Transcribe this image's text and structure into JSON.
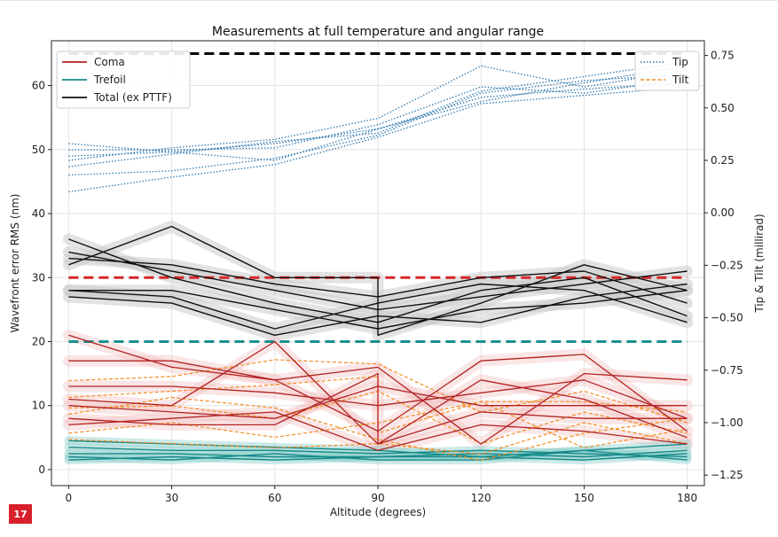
{
  "page_badge": "17",
  "chart_data": {
    "type": "line",
    "title": "Measurements at full temperature and angular range",
    "xlabel": "Altitude (degrees)",
    "ylabel_left": "Wavefront error RMS (nm)",
    "ylabel_right": "Tip & Tilt (millirad)",
    "x_ticks": [
      0,
      30,
      60,
      90,
      120,
      150,
      180
    ],
    "y_left_ticks": [
      0,
      10,
      20,
      30,
      40,
      50,
      60
    ],
    "y_right_ticks": [
      "0.75",
      "0.50",
      "0.25",
      "0.00",
      "−0.25",
      "−0.50",
      "−0.75",
      "−1.00",
      "−1.25"
    ],
    "xlim": [
      -5,
      185
    ],
    "ylim_left": [
      -2.5,
      67
    ],
    "ylim_right": [
      -1.3,
      0.82
    ],
    "grid": true,
    "colors": {
      "coma": "#b22222",
      "coma_band": "#f2b8b8",
      "trefoil": "#178a8a",
      "trefoil_band": "#8fd0cc",
      "total": "#111111",
      "total_band": "#cccccc",
      "tip": "#2f7ab0",
      "tilt": "#f28c1e",
      "req_coma": "#d62728",
      "req_trefoil": "#17908e",
      "req_total": "#000000"
    },
    "legend_left": [
      {
        "label": "Coma",
        "color": "#b22222",
        "style": "solid"
      },
      {
        "label": "Trefoil",
        "color": "#178a8a",
        "style": "solid"
      },
      {
        "label": "Total (ex PTTF)",
        "color": "#111111",
        "style": "solid"
      }
    ],
    "legend_right": [
      {
        "label": "Tip",
        "color": "#2f7ab0",
        "style": "dotted"
      },
      {
        "label": "Tilt",
        "color": "#f28c1e",
        "style": "dashed"
      }
    ],
    "reference_lines": [
      {
        "series": "total",
        "y": 65,
        "color": "#000000"
      },
      {
        "series": "coma",
        "y": 30,
        "color": "#d62728"
      },
      {
        "series": "trefoil",
        "y": 20,
        "color": "#17908e"
      }
    ],
    "total_series": [
      [
        {
          "x": 0,
          "y": 36
        },
        {
          "x": 30,
          "y": 30
        },
        {
          "x": 60,
          "y": 26
        },
        {
          "x": 90,
          "y": 23
        },
        {
          "x": 120,
          "y": 28
        },
        {
          "x": 150,
          "y": 30
        },
        {
          "x": 180,
          "y": 24
        }
      ],
      [
        {
          "x": 0,
          "y": 34
        },
        {
          "x": 30,
          "y": 31
        },
        {
          "x": 60,
          "y": 28
        },
        {
          "x": 90,
          "y": 25
        },
        {
          "x": 120,
          "y": 27
        },
        {
          "x": 150,
          "y": 29
        },
        {
          "x": 180,
          "y": 31
        }
      ],
      [
        {
          "x": 0,
          "y": 32
        },
        {
          "x": 30,
          "y": 38
        },
        {
          "x": 60,
          "y": 30
        },
        {
          "x": 90,
          "y": 30
        },
        {
          "x": 90,
          "y": 21
        },
        {
          "x": 120,
          "y": 26
        },
        {
          "x": 150,
          "y": 32
        },
        {
          "x": 180,
          "y": 28
        }
      ],
      [
        {
          "x": 0,
          "y": 28
        },
        {
          "x": 30,
          "y": 27
        },
        {
          "x": 60,
          "y": 22
        },
        {
          "x": 90,
          "y": 26
        },
        {
          "x": 120,
          "y": 29
        },
        {
          "x": 150,
          "y": 28
        },
        {
          "x": 180,
          "y": 23
        }
      ],
      [
        {
          "x": 0,
          "y": 27
        },
        {
          "x": 30,
          "y": 26
        },
        {
          "x": 60,
          "y": 21
        },
        {
          "x": 90,
          "y": 24
        },
        {
          "x": 120,
          "y": 23
        },
        {
          "x": 150,
          "y": 27
        },
        {
          "x": 180,
          "y": 29
        }
      ],
      [
        {
          "x": 0,
          "y": 33
        },
        {
          "x": 30,
          "y": 32
        },
        {
          "x": 60,
          "y": 29
        },
        {
          "x": 90,
          "y": 27
        },
        {
          "x": 120,
          "y": 30
        },
        {
          "x": 150,
          "y": 31
        },
        {
          "x": 180,
          "y": 26
        }
      ],
      [
        {
          "x": 0,
          "y": 28
        },
        {
          "x": 30,
          "y": 28
        },
        {
          "x": 60,
          "y": 25
        },
        {
          "x": 90,
          "y": 22
        },
        {
          "x": 120,
          "y": 25
        },
        {
          "x": 150,
          "y": 26
        },
        {
          "x": 180,
          "y": 28
        }
      ]
    ],
    "coma_series": [
      [
        {
          "x": 0,
          "y": 21
        },
        {
          "x": 30,
          "y": 16
        },
        {
          "x": 60,
          "y": 14
        },
        {
          "x": 90,
          "y": 6
        },
        {
          "x": 120,
          "y": 17
        },
        {
          "x": 150,
          "y": 18
        },
        {
          "x": 180,
          "y": 6
        }
      ],
      [
        {
          "x": 0,
          "y": 17
        },
        {
          "x": 30,
          "y": 17
        },
        {
          "x": 60,
          "y": 14
        },
        {
          "x": 90,
          "y": 16
        },
        {
          "x": 120,
          "y": 4
        },
        {
          "x": 150,
          "y": 15
        },
        {
          "x": 180,
          "y": 14
        }
      ],
      [
        {
          "x": 0,
          "y": 13
        },
        {
          "x": 30,
          "y": 13
        },
        {
          "x": 60,
          "y": 12
        },
        {
          "x": 90,
          "y": 10
        },
        {
          "x": 120,
          "y": 12
        },
        {
          "x": 150,
          "y": 14
        },
        {
          "x": 180,
          "y": 8
        }
      ],
      [
        {
          "x": 0,
          "y": 11
        },
        {
          "x": 30,
          "y": 10
        },
        {
          "x": 60,
          "y": 20
        },
        {
          "x": 90,
          "y": 4
        },
        {
          "x": 120,
          "y": 14
        },
        {
          "x": 150,
          "y": 11
        },
        {
          "x": 180,
          "y": 5
        }
      ],
      [
        {
          "x": 0,
          "y": 10
        },
        {
          "x": 30,
          "y": 9
        },
        {
          "x": 60,
          "y": 8
        },
        {
          "x": 90,
          "y": 13
        },
        {
          "x": 120,
          "y": 10
        },
        {
          "x": 150,
          "y": 10
        },
        {
          "x": 180,
          "y": 10
        }
      ],
      [
        {
          "x": 0,
          "y": 8
        },
        {
          "x": 30,
          "y": 7
        },
        {
          "x": 60,
          "y": 7
        },
        {
          "x": 90,
          "y": 15
        },
        {
          "x": 90,
          "y": 4
        },
        {
          "x": 120,
          "y": 9
        },
        {
          "x": 150,
          "y": 8
        },
        {
          "x": 180,
          "y": 8
        }
      ],
      [
        {
          "x": 0,
          "y": 7
        },
        {
          "x": 30,
          "y": 8
        },
        {
          "x": 60,
          "y": 9
        },
        {
          "x": 90,
          "y": 3
        },
        {
          "x": 120,
          "y": 7
        },
        {
          "x": 150,
          "y": 6
        },
        {
          "x": 180,
          "y": 4
        }
      ]
    ],
    "trefoil_series": [
      [
        {
          "x": 0,
          "y": 4.5
        },
        {
          "x": 30,
          "y": 4
        },
        {
          "x": 60,
          "y": 3.5
        },
        {
          "x": 90,
          "y": 3
        },
        {
          "x": 120,
          "y": 2
        },
        {
          "x": 150,
          "y": 3
        },
        {
          "x": 180,
          "y": 4
        }
      ],
      [
        {
          "x": 0,
          "y": 3.5
        },
        {
          "x": 30,
          "y": 3
        },
        {
          "x": 60,
          "y": 3
        },
        {
          "x": 90,
          "y": 2.5
        },
        {
          "x": 120,
          "y": 3
        },
        {
          "x": 150,
          "y": 2.5
        },
        {
          "x": 180,
          "y": 2
        }
      ],
      [
        {
          "x": 0,
          "y": 2.5
        },
        {
          "x": 30,
          "y": 2.5
        },
        {
          "x": 60,
          "y": 2
        },
        {
          "x": 90,
          "y": 2
        },
        {
          "x": 120,
          "y": 2.5
        },
        {
          "x": 150,
          "y": 2
        },
        {
          "x": 180,
          "y": 3
        }
      ],
      [
        {
          "x": 0,
          "y": 2
        },
        {
          "x": 30,
          "y": 1.5
        },
        {
          "x": 60,
          "y": 2.5
        },
        {
          "x": 90,
          "y": 1.5
        },
        {
          "x": 120,
          "y": 1.5
        },
        {
          "x": 150,
          "y": 3
        },
        {
          "x": 180,
          "y": 1.5
        }
      ],
      [
        {
          "x": 0,
          "y": 1.5
        },
        {
          "x": 30,
          "y": 2
        },
        {
          "x": 60,
          "y": 1.5
        },
        {
          "x": 90,
          "y": 2
        },
        {
          "x": 120,
          "y": 2
        },
        {
          "x": 150,
          "y": 1.5
        },
        {
          "x": 180,
          "y": 2.5
        }
      ]
    ],
    "tip_series": [
      [
        {
          "x": 0,
          "y": 0.27
        },
        {
          "x": 30,
          "y": 0.29
        },
        {
          "x": 60,
          "y": 0.33
        },
        {
          "x": 90,
          "y": 0.4
        },
        {
          "x": 120,
          "y": 0.53
        },
        {
          "x": 150,
          "y": 0.62
        },
        {
          "x": 180,
          "y": 0.7
        }
      ],
      [
        {
          "x": 0,
          "y": 0.25
        },
        {
          "x": 30,
          "y": 0.31
        },
        {
          "x": 60,
          "y": 0.35
        },
        {
          "x": 90,
          "y": 0.45
        },
        {
          "x": 120,
          "y": 0.7
        },
        {
          "x": 150,
          "y": 0.6
        },
        {
          "x": 180,
          "y": 0.68
        }
      ],
      [
        {
          "x": 0,
          "y": 0.33
        },
        {
          "x": 30,
          "y": 0.29
        },
        {
          "x": 60,
          "y": 0.25
        },
        {
          "x": 90,
          "y": 0.4
        },
        {
          "x": 120,
          "y": 0.55
        },
        {
          "x": 150,
          "y": 0.59
        },
        {
          "x": 180,
          "y": 0.62
        }
      ],
      [
        {
          "x": 0,
          "y": 0.22
        },
        {
          "x": 30,
          "y": 0.28
        },
        {
          "x": 60,
          "y": 0.34
        },
        {
          "x": 90,
          "y": 0.38
        },
        {
          "x": 120,
          "y": 0.58
        },
        {
          "x": 150,
          "y": 0.65
        },
        {
          "x": 180,
          "y": 0.72
        }
      ],
      [
        {
          "x": 0,
          "y": 0.18
        },
        {
          "x": 30,
          "y": 0.2
        },
        {
          "x": 60,
          "y": 0.26
        },
        {
          "x": 90,
          "y": 0.37
        },
        {
          "x": 120,
          "y": 0.57
        },
        {
          "x": 150,
          "y": 0.63
        },
        {
          "x": 180,
          "y": 0.66
        }
      ],
      [
        {
          "x": 0,
          "y": 0.1
        },
        {
          "x": 30,
          "y": 0.17
        },
        {
          "x": 60,
          "y": 0.23
        },
        {
          "x": 90,
          "y": 0.36
        },
        {
          "x": 120,
          "y": 0.52
        },
        {
          "x": 150,
          "y": 0.56
        },
        {
          "x": 180,
          "y": 0.6
        }
      ],
      [
        {
          "x": 0,
          "y": 0.3
        },
        {
          "x": 30,
          "y": 0.3
        },
        {
          "x": 60,
          "y": 0.31
        },
        {
          "x": 90,
          "y": 0.42
        },
        {
          "x": 120,
          "y": 0.6
        },
        {
          "x": 150,
          "y": 0.57
        },
        {
          "x": 180,
          "y": 0.64
        }
      ]
    ],
    "tilt_series": [
      [
        {
          "x": 0,
          "y": -0.8
        },
        {
          "x": 30,
          "y": -0.78
        },
        {
          "x": 60,
          "y": -0.7
        },
        {
          "x": 90,
          "y": -0.72
        },
        {
          "x": 120,
          "y": -0.95
        },
        {
          "x": 150,
          "y": -0.85
        },
        {
          "x": 180,
          "y": -1.0
        }
      ],
      [
        {
          "x": 0,
          "y": -0.88
        },
        {
          "x": 30,
          "y": -0.85
        },
        {
          "x": 60,
          "y": -0.82
        },
        {
          "x": 90,
          "y": -0.78
        },
        {
          "x": 90,
          "y": -1.05
        },
        {
          "x": 120,
          "y": -0.9
        },
        {
          "x": 150,
          "y": -0.9
        },
        {
          "x": 180,
          "y": -0.95
        }
      ],
      [
        {
          "x": 0,
          "y": -0.93
        },
        {
          "x": 30,
          "y": -0.92
        },
        {
          "x": 60,
          "y": -0.98
        },
        {
          "x": 90,
          "y": -0.85
        },
        {
          "x": 120,
          "y": -1.1
        },
        {
          "x": 150,
          "y": -0.95
        },
        {
          "x": 180,
          "y": -1.05
        }
      ],
      [
        {
          "x": 0,
          "y": -0.96
        },
        {
          "x": 30,
          "y": -0.88
        },
        {
          "x": 60,
          "y": -0.93
        },
        {
          "x": 90,
          "y": -1.08
        },
        {
          "x": 120,
          "y": -1.18
        },
        {
          "x": 150,
          "y": -1.05
        },
        {
          "x": 180,
          "y": -0.98
        }
      ],
      [
        {
          "x": 0,
          "y": -1.05
        },
        {
          "x": 30,
          "y": -1.0
        },
        {
          "x": 60,
          "y": -1.07
        },
        {
          "x": 90,
          "y": -1.0
        },
        {
          "x": 120,
          "y": -0.9
        },
        {
          "x": 150,
          "y": -1.12
        },
        {
          "x": 180,
          "y": -1.03
        }
      ],
      [
        {
          "x": 0,
          "y": -1.08
        },
        {
          "x": 30,
          "y": -1.1
        },
        {
          "x": 60,
          "y": -1.12
        },
        {
          "x": 90,
          "y": -1.1
        },
        {
          "x": 120,
          "y": -1.15
        },
        {
          "x": 150,
          "y": -1.0
        },
        {
          "x": 180,
          "y": -1.1
        }
      ]
    ]
  }
}
